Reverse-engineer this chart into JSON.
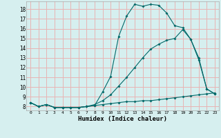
{
  "title": "",
  "xlabel": "Humidex (Indice chaleur)",
  "ylabel": "",
  "background_color": "#d6efef",
  "grid_color": "#e8b4b4",
  "line_color": "#006868",
  "xlim": [
    -0.5,
    23.5
  ],
  "ylim": [
    7.6,
    18.8
  ],
  "xticks": [
    0,
    1,
    2,
    3,
    4,
    5,
    6,
    7,
    8,
    9,
    10,
    11,
    12,
    13,
    14,
    15,
    16,
    17,
    18,
    19,
    20,
    21,
    22,
    23
  ],
  "yticks": [
    8,
    9,
    10,
    11,
    12,
    13,
    14,
    15,
    16,
    17,
    18
  ],
  "line1_x": [
    0,
    1,
    2,
    3,
    4,
    5,
    6,
    7,
    8,
    9,
    10,
    11,
    12,
    13,
    14,
    15,
    16,
    17,
    18,
    19,
    20,
    21,
    22,
    23
  ],
  "line1_y": [
    8.4,
    8.0,
    8.2,
    7.9,
    7.9,
    7.9,
    7.9,
    8.0,
    8.1,
    9.5,
    11.1,
    15.2,
    17.3,
    18.5,
    18.3,
    18.5,
    18.4,
    17.6,
    16.3,
    16.1,
    14.9,
    12.8,
    9.8,
    9.3
  ],
  "line2_x": [
    0,
    1,
    2,
    3,
    4,
    5,
    6,
    7,
    8,
    9,
    10,
    11,
    12,
    13,
    14,
    15,
    16,
    17,
    18,
    19,
    20,
    21,
    22,
    23
  ],
  "line2_y": [
    8.4,
    8.0,
    8.2,
    7.9,
    7.9,
    7.9,
    7.9,
    8.0,
    8.2,
    8.6,
    9.2,
    10.1,
    11.0,
    12.0,
    13.0,
    13.9,
    14.4,
    14.8,
    15.0,
    15.9,
    14.9,
    13.0,
    9.8,
    9.3
  ],
  "line3_x": [
    0,
    1,
    2,
    3,
    4,
    5,
    6,
    7,
    8,
    9,
    10,
    11,
    12,
    13,
    14,
    15,
    16,
    17,
    18,
    19,
    20,
    21,
    22,
    23
  ],
  "line3_y": [
    8.4,
    8.0,
    8.2,
    7.9,
    7.9,
    7.9,
    7.9,
    8.0,
    8.1,
    8.2,
    8.3,
    8.4,
    8.5,
    8.5,
    8.6,
    8.6,
    8.7,
    8.8,
    8.9,
    9.0,
    9.1,
    9.2,
    9.3,
    9.4
  ]
}
